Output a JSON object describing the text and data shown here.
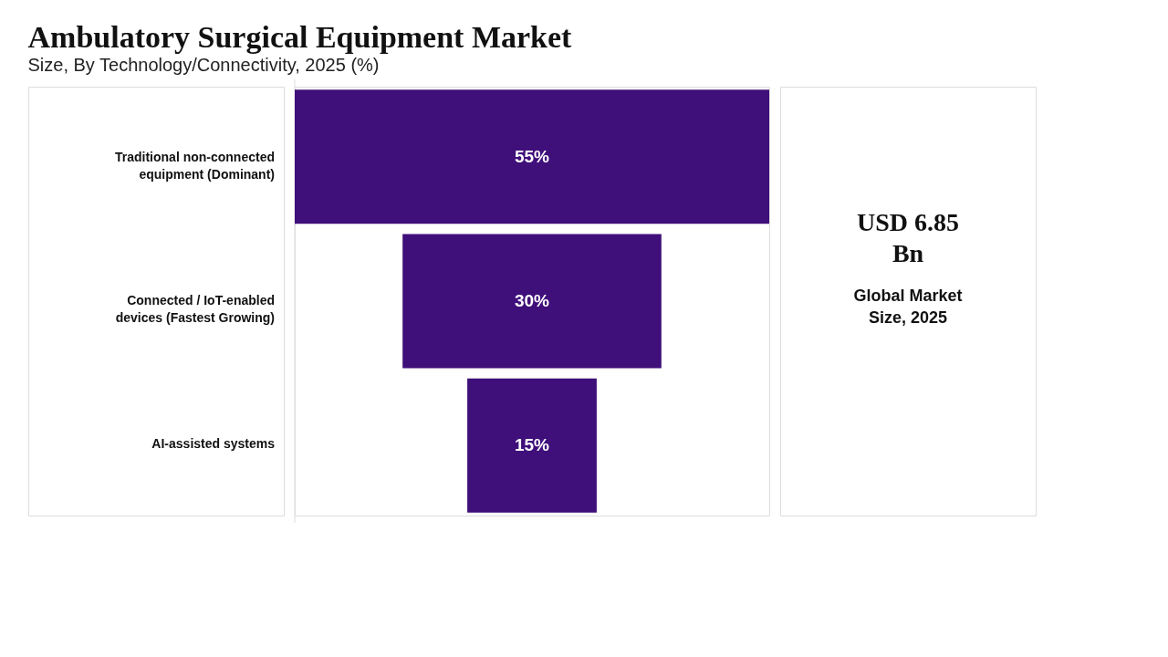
{
  "chart_data": {
    "type": "other",
    "title": "Ambulatory Surgical Equipment Market",
    "subtitle": "Size, By Technology/Connectivity, 2025 (%)",
    "categories": [
      "Traditional non-connected equipment (Dominant)",
      "Connected / IoT-enabled devices (Fastest Growing)",
      "AI-assisted systems"
    ],
    "values": [
      55,
      30,
      15
    ],
    "color": "#3f0f7a",
    "value_labels": [
      "55%",
      "30%",
      "15%"
    ],
    "annotations": [
      "USD 6.85 Bn",
      "Global Market Size, 2025"
    ]
  }
}
